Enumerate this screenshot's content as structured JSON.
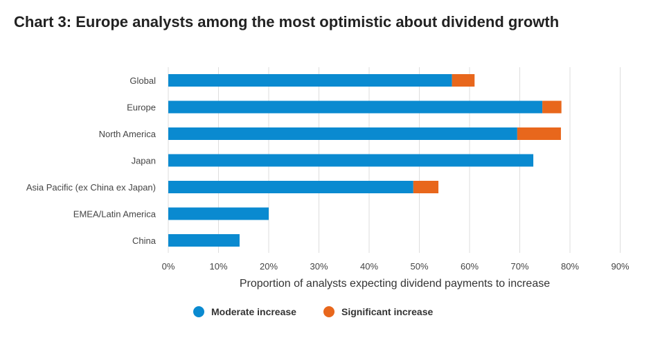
{
  "chart_data": {
    "type": "bar",
    "orientation": "horizontal",
    "stacked": true,
    "title": "Chart 3: Europe analysts among the most optimistic about dividend growth",
    "xlabel": "Proportion of analysts expecting dividend payments to increase",
    "ylabel": "",
    "categories": [
      "Global",
      "Europe",
      "North America",
      "Japan",
      "Asia Pacific (ex China ex Japan)",
      "EMEA/Latin America",
      "China"
    ],
    "series": [
      {
        "name": "Moderate increase",
        "color": "#0a8ad0",
        "values": [
          56.5,
          74.5,
          69.5,
          72.7,
          48.8,
          20,
          14.2
        ]
      },
      {
        "name": "Significant increase",
        "color": "#e8671c",
        "values": [
          4.5,
          3.8,
          8.7,
          0,
          5.0,
          0,
          0
        ]
      }
    ],
    "xlim": [
      0,
      90
    ],
    "xticks": [
      "0%",
      "10%",
      "20%",
      "30%",
      "40%",
      "50%",
      "60%",
      "70%",
      "80%",
      "90%"
    ],
    "grid": true,
    "legend": "bottom-center"
  }
}
